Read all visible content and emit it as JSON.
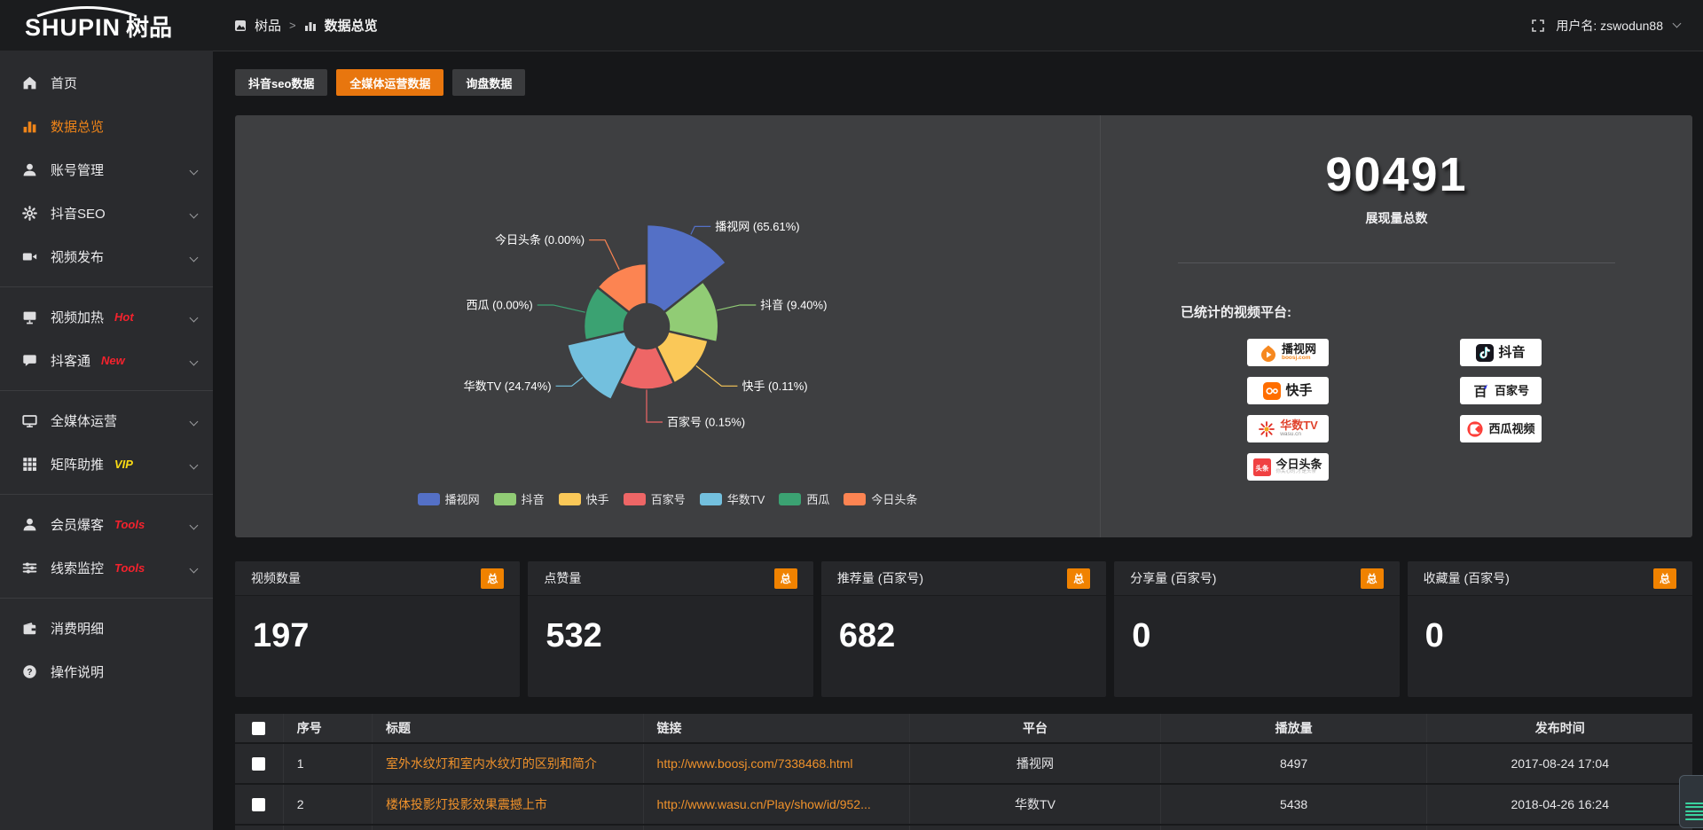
{
  "topbar": {
    "logo_en": "SHUPIN",
    "logo_cn": "树品",
    "breadcrumb": [
      {
        "label": "树品"
      },
      {
        "label": "数据总览"
      }
    ],
    "breadcrumb_separator": ">",
    "username": "用户名: zswodun88"
  },
  "sidebar": {
    "items": [
      {
        "label": "首页",
        "icon": "home"
      },
      {
        "label": "数据总览",
        "icon": "chart",
        "active": true
      },
      {
        "label": "账号管理",
        "icon": "user",
        "chevron": true
      },
      {
        "label": "抖音SEO",
        "icon": "gear",
        "chevron": true
      },
      {
        "label": "视频发布",
        "icon": "video",
        "chevron": true,
        "divider_after": true
      },
      {
        "label": "视频加热",
        "icon": "heat",
        "badge": "Hot",
        "badge_color": "#f5222d",
        "chevron": true
      },
      {
        "label": "抖客通",
        "icon": "chat",
        "badge": "New",
        "badge_color": "#f5222d",
        "chevron": true,
        "divider_after": true
      },
      {
        "label": "全媒体运营",
        "icon": "screen",
        "chevron": true
      },
      {
        "label": "矩阵助推",
        "icon": "grid",
        "badge": "VIP",
        "badge_color": "#fadb14",
        "chevron": true,
        "divider_after": true
      },
      {
        "label": "会员爆客",
        "icon": "member",
        "badge": "Tools",
        "badge_color": "#f5222d",
        "chevron": true
      },
      {
        "label": "线索监控",
        "icon": "sliders",
        "badge": "Tools",
        "badge_color": "#f5222d",
        "chevron": true,
        "divider_after": true
      },
      {
        "label": "消费明细",
        "icon": "wallet"
      },
      {
        "label": "操作说明",
        "icon": "question"
      }
    ]
  },
  "tabs": {
    "items": [
      {
        "label": "抖音seo数据",
        "active": false
      },
      {
        "label": "全媒体运营数据",
        "active": true
      },
      {
        "label": "询盘数据",
        "active": false
      }
    ]
  },
  "chart_data": {
    "type": "pie",
    "variant": "nightingale-rose",
    "title": "",
    "categories": [
      "播视网",
      "抖音",
      "快手",
      "百家号",
      "华数TV",
      "西瓜",
      "今日头条"
    ],
    "values": [
      65.61,
      9.4,
      0.11,
      0.15,
      24.74,
      0.0,
      0.0
    ],
    "unit": "percent",
    "labels": [
      "播视网 (65.61%)",
      "抖音 (9.40%)",
      "快手 (0.11%)",
      "百家号 (0.15%)",
      "华数TV (24.74%)",
      "西瓜 (0.00%)",
      "今日头条 (0.00%)"
    ],
    "colors": [
      "#5470c6",
      "#91cc75",
      "#fac858",
      "#ee6666",
      "#73c0de",
      "#3ba272",
      "#fc8452"
    ],
    "legend_position": "bottom"
  },
  "summary": {
    "total": "90491",
    "total_label": "展现量总数",
    "platforms_label": "已统计的视频平台:",
    "platform_columns": [
      [
        {
          "name": "播视网",
          "sub": "boosj.com",
          "icon": "boosj"
        },
        {
          "name": "快手",
          "icon": "kuaishou"
        },
        {
          "name": "华数TV",
          "sub": "wasu.cn",
          "icon": "wasu"
        },
        {
          "name": "今日头条",
          "sub": "你关心的,才是头条",
          "icon": "toutiao"
        }
      ],
      [
        {
          "name": "抖音",
          "icon": "douyin"
        },
        {
          "name": "百家号",
          "icon": "baijiahao"
        },
        {
          "name": "西瓜视频",
          "icon": "xigua"
        }
      ]
    ]
  },
  "stat_cards": [
    {
      "title": "视频数量",
      "badge": "总",
      "value": "197"
    },
    {
      "title": "点赞量",
      "badge": "总",
      "value": "532"
    },
    {
      "title": "推荐量 (百家号)",
      "badge": "总",
      "value": "682"
    },
    {
      "title": "分享量 (百家号)",
      "badge": "总",
      "value": "0"
    },
    {
      "title": "收藏量 (百家号)",
      "badge": "总",
      "value": "0"
    }
  ],
  "table": {
    "headers": [
      "序号",
      "标题",
      "链接",
      "平台",
      "播放量",
      "发布时间"
    ],
    "rows": [
      {
        "seq": "1",
        "title": "室外水纹灯和室内水纹灯的区别和简介",
        "link": "http://www.boosj.com/7338468.html",
        "platform": "播视网",
        "plays": "8497",
        "time": "2017-08-24 17:04"
      },
      {
        "seq": "2",
        "title": "楼体投影灯投影效果震撼上市",
        "link": "http://www.wasu.cn/Play/show/id/952...",
        "platform": "华数TV",
        "plays": "5438",
        "time": "2018-04-26 16:24"
      }
    ]
  }
}
